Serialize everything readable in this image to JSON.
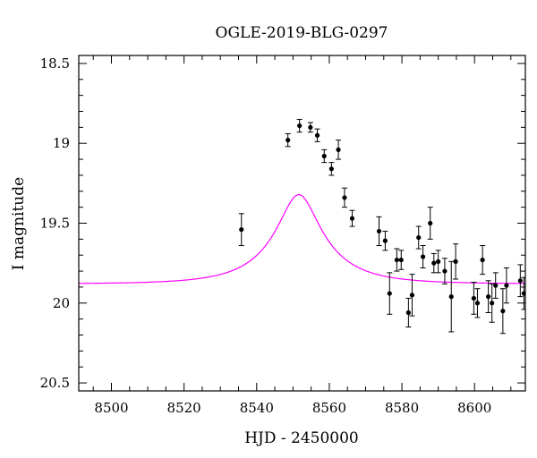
{
  "chart_data": {
    "type": "scatter",
    "title": "OGLE-2019-BLG-0297",
    "xlabel": "HJD - 2450000",
    "ylabel": "I magnitude",
    "xlim": [
      8491,
      8614
    ],
    "ylim": [
      18.45,
      20.55
    ],
    "y_inverted": true,
    "x_ticks": [
      8500,
      8520,
      8540,
      8560,
      8580,
      8600
    ],
    "x_tick_labels": [
      "8500",
      "8520",
      "8540",
      "8560",
      "8580",
      "8600"
    ],
    "y_ticks": [
      18.5,
      19,
      19.5,
      20,
      20.5
    ],
    "y_tick_labels": [
      "18.5",
      "19",
      "19.5",
      "20",
      "20.5"
    ],
    "grid": false,
    "model_color": "#ff00ff",
    "point_color": "#000000",
    "model_curve": {
      "baseline_mag": 19.88,
      "t0": 8551.6,
      "u0": 0.32,
      "tE": 17.0,
      "blend_fraction": 0.3
    },
    "points": [
      {
        "x": 8535.8,
        "y": 19.54,
        "err": 0.1
      },
      {
        "x": 8548.6,
        "y": 18.98,
        "err": 0.04
      },
      {
        "x": 8551.8,
        "y": 18.89,
        "err": 0.04
      },
      {
        "x": 8554.8,
        "y": 18.9,
        "err": 0.03
      },
      {
        "x": 8556.7,
        "y": 18.95,
        "err": 0.04
      },
      {
        "x": 8558.6,
        "y": 19.08,
        "err": 0.04
      },
      {
        "x": 8560.6,
        "y": 19.16,
        "err": 0.04
      },
      {
        "x": 8562.5,
        "y": 19.04,
        "err": 0.06
      },
      {
        "x": 8564.2,
        "y": 19.34,
        "err": 0.06
      },
      {
        "x": 8566.3,
        "y": 19.47,
        "err": 0.05
      },
      {
        "x": 8573.7,
        "y": 19.55,
        "err": 0.09
      },
      {
        "x": 8575.4,
        "y": 19.61,
        "err": 0.06
      },
      {
        "x": 8576.6,
        "y": 19.94,
        "err": 0.13
      },
      {
        "x": 8578.6,
        "y": 19.73,
        "err": 0.07
      },
      {
        "x": 8579.8,
        "y": 19.73,
        "err": 0.06
      },
      {
        "x": 8581.8,
        "y": 20.06,
        "err": 0.09
      },
      {
        "x": 8582.8,
        "y": 19.95,
        "err": 0.13
      },
      {
        "x": 8584.6,
        "y": 19.59,
        "err": 0.07
      },
      {
        "x": 8585.8,
        "y": 19.71,
        "err": 0.07
      },
      {
        "x": 8587.8,
        "y": 19.5,
        "err": 0.1
      },
      {
        "x": 8588.8,
        "y": 19.75,
        "err": 0.06
      },
      {
        "x": 8590.0,
        "y": 19.74,
        "err": 0.07
      },
      {
        "x": 8591.8,
        "y": 19.8,
        "err": 0.08
      },
      {
        "x": 8593.6,
        "y": 19.96,
        "err": 0.22
      },
      {
        "x": 8594.8,
        "y": 19.74,
        "err": 0.11
      },
      {
        "x": 8599.8,
        "y": 19.97,
        "err": 0.1
      },
      {
        "x": 8600.8,
        "y": 20.0,
        "err": 0.09
      },
      {
        "x": 8602.2,
        "y": 19.73,
        "err": 0.09
      },
      {
        "x": 8603.8,
        "y": 19.96,
        "err": 0.1
      },
      {
        "x": 8604.8,
        "y": 20.0,
        "err": 0.12
      },
      {
        "x": 8605.8,
        "y": 19.89,
        "err": 0.08
      },
      {
        "x": 8607.8,
        "y": 20.05,
        "err": 0.14
      },
      {
        "x": 8608.8,
        "y": 19.89,
        "err": 0.11
      },
      {
        "x": 8612.6,
        "y": 19.86,
        "err": 0.1
      },
      {
        "x": 8613.6,
        "y": 19.94,
        "err": 0.1
      }
    ]
  }
}
